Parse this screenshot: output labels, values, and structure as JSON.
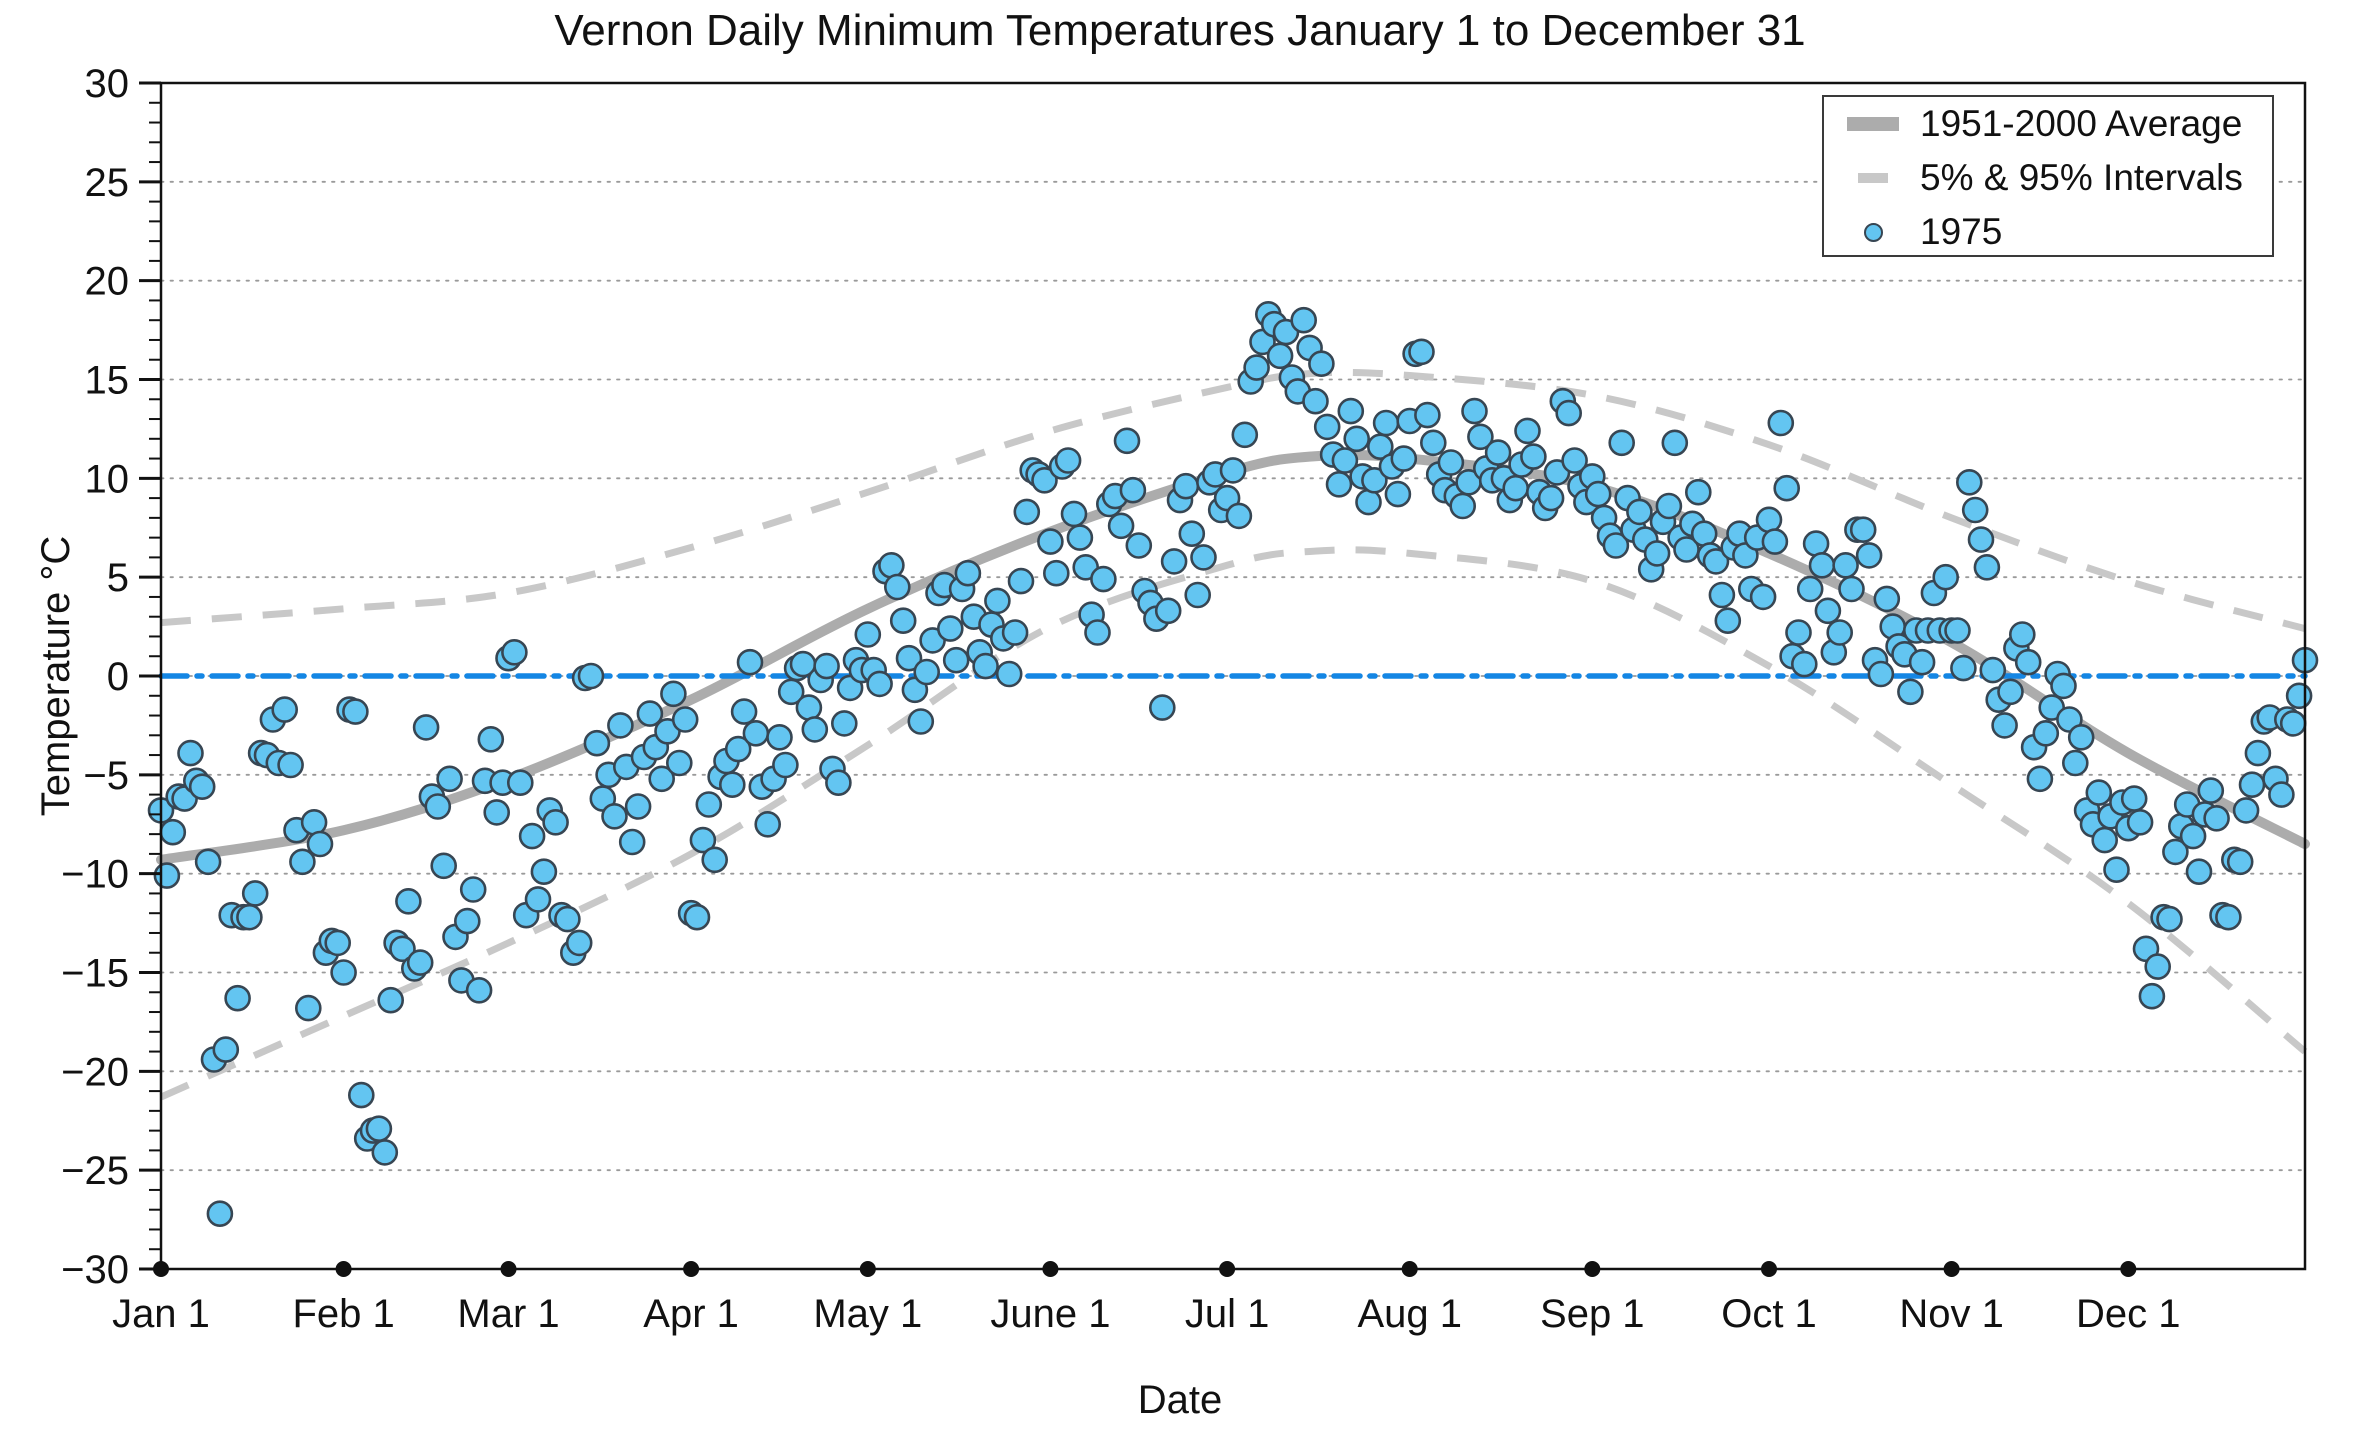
{
  "title": "Vernon Daily Minimum Temperatures January 1 to December 31",
  "x_axis": {
    "label": "Date"
  },
  "y_axis": {
    "label": "Temperature °C",
    "tick_step_major": 5,
    "tick_step_minor": 1
  },
  "legend": {
    "items": [
      {
        "label": "1951-2000 Average",
        "swatch": "thick-gray-line"
      },
      {
        "label": "5% & 95% Intervals",
        "swatch": "gray-dash"
      },
      {
        "label": "1975",
        "swatch": "blue-dot"
      }
    ]
  },
  "colors": {
    "scatter_fill": "#63C5F1",
    "scatter_edge": "#374653",
    "average_line": "#ACACAC",
    "interval_line": "#C8C8C8",
    "zero_line": "#1486E4",
    "grid": "#9a9a9a",
    "axis": "#111111"
  },
  "chart_data": {
    "type": "scatter",
    "title": "Vernon Daily Minimum Temperatures January 1 to December 31",
    "xlabel": "Date",
    "ylabel": "Temperature °C",
    "ylim": [
      -30,
      30
    ],
    "x_unit": "day_of_year",
    "x_range_days": [
      1,
      365
    ],
    "grid": "dotted horizontal every 5°C",
    "legend_position": "top-right",
    "month_labels": [
      "Jan 1",
      "Feb 1",
      "Mar 1",
      "Apr 1",
      "May 1",
      "June 1",
      "Jul 1",
      "Aug 1",
      "Sep 1",
      "Oct 1",
      "Nov 1",
      "Dec 1"
    ],
    "month_start_days": [
      1,
      32,
      60,
      91,
      121,
      152,
      182,
      213,
      244,
      274,
      305,
      335
    ],
    "y_major_ticks": [
      30,
      25,
      20,
      15,
      10,
      5,
      0,
      -5,
      -10,
      -15,
      -20,
      -25,
      -30
    ],
    "zero_reference_line": 0,
    "series": [
      {
        "name": "1951-2000 Average",
        "type": "line",
        "x": [
          1,
          32,
          60,
          91,
          121,
          152,
          182,
          196,
          213,
          244,
          274,
          305,
          335,
          365
        ],
        "y": [
          -9.3,
          -7.8,
          -5.2,
          -1.2,
          3.4,
          7.3,
          10.3,
          11.1,
          11.0,
          9.6,
          6.2,
          1.7,
          -3.9,
          -8.5
        ]
      },
      {
        "name": "5% Interval",
        "type": "dashed-line",
        "x": [
          1,
          32,
          60,
          91,
          121,
          152,
          182,
          196,
          213,
          244,
          274,
          305,
          335,
          365
        ],
        "y": [
          -21.3,
          -17.2,
          -13.5,
          -9.0,
          -3.5,
          2.5,
          5.6,
          6.3,
          6.2,
          4.8,
          0.5,
          -5.5,
          -11.5,
          -19.0
        ]
      },
      {
        "name": "95% Interval",
        "type": "dashed-line",
        "x": [
          1,
          32,
          60,
          91,
          121,
          152,
          182,
          196,
          213,
          244,
          274,
          305,
          335,
          365
        ],
        "y": [
          2.7,
          3.4,
          4.2,
          6.5,
          9.3,
          12.4,
          14.6,
          15.3,
          15.2,
          14.2,
          11.7,
          8.0,
          4.8,
          2.4
        ]
      },
      {
        "name": "1975",
        "type": "scatter",
        "x_is_day_of_year_1_to_365": true,
        "daily_temps": [
          -6.8,
          -10.1,
          -7.9,
          -6.1,
          -6.2,
          -3.9,
          -5.3,
          -5.6,
          -9.4,
          -19.4,
          -27.2,
          -18.9,
          -12.1,
          -16.3,
          -12.2,
          -12.2,
          -11.0,
          -3.9,
          -4.0,
          -2.2,
          -4.4,
          -1.7,
          -4.5,
          -7.8,
          -9.4,
          -16.8,
          -7.4,
          -8.5,
          -14.0,
          -13.4,
          -13.5,
          -15.0,
          -1.7,
          -1.8,
          -21.2,
          -23.4,
          -23.0,
          -22.9,
          -24.1,
          -16.4,
          -13.5,
          -13.8,
          -11.4,
          -14.8,
          -14.5,
          -2.6,
          -6.1,
          -6.6,
          -9.6,
          -5.2,
          -13.2,
          -15.4,
          -12.4,
          -10.8,
          -15.9,
          -5.3,
          -3.2,
          -6.9,
          -5.4,
          0.9,
          1.2,
          -5.4,
          -12.1,
          -8.1,
          -11.3,
          -9.9,
          -6.8,
          -7.4,
          -12.1,
          -12.3,
          -14.0,
          -13.5,
          -0.1,
          0.0,
          -3.4,
          -6.2,
          -5.0,
          -7.1,
          -2.5,
          -4.6,
          -8.4,
          -6.6,
          -4.1,
          -1.9,
          -3.6,
          -5.2,
          -2.8,
          -0.9,
          -4.4,
          -2.2,
          -12.0,
          -12.2,
          -8.3,
          -6.5,
          -9.3,
          -5.1,
          -4.3,
          -5.5,
          -3.7,
          -1.8,
          0.7,
          -2.9,
          -5.6,
          -7.5,
          -5.2,
          -3.1,
          -4.5,
          -0.8,
          0.4,
          0.6,
          -1.6,
          -2.7,
          -0.2,
          0.5,
          -4.7,
          -5.4,
          -2.4,
          -0.6,
          0.8,
          0.3,
          2.1,
          0.3,
          -0.4,
          5.3,
          5.6,
          4.5,
          2.8,
          0.9,
          -0.7,
          -2.3,
          0.2,
          1.8,
          4.2,
          4.6,
          2.4,
          0.8,
          4.4,
          5.2,
          3.0,
          1.2,
          0.5,
          2.6,
          3.8,
          1.9,
          0.1,
          2.2,
          4.8,
          8.3,
          10.4,
          10.2,
          9.9,
          6.8,
          5.2,
          10.6,
          10.9,
          8.2,
          7.0,
          5.5,
          3.1,
          2.2,
          4.9,
          8.7,
          9.1,
          7.6,
          11.9,
          9.4,
          6.6,
          4.3,
          3.7,
          2.9,
          -1.6,
          3.3,
          5.8,
          8.9,
          9.6,
          7.2,
          4.1,
          6.0,
          9.8,
          10.2,
          8.4,
          9.0,
          10.4,
          8.1,
          12.2,
          14.9,
          15.6,
          16.9,
          18.3,
          17.8,
          16.2,
          17.4,
          15.1,
          14.4,
          18.0,
          16.6,
          13.9,
          15.8,
          12.6,
          11.2,
          9.7,
          10.9,
          13.4,
          12.0,
          10.1,
          8.8,
          9.9,
          11.6,
          12.8,
          10.6,
          9.2,
          11.0,
          12.9,
          16.3,
          16.4,
          13.2,
          11.8,
          10.2,
          9.4,
          10.8,
          9.1,
          8.6,
          9.8,
          13.4,
          12.1,
          10.5,
          9.9,
          11.3,
          10.0,
          8.9,
          9.5,
          10.7,
          12.4,
          11.1,
          9.3,
          8.5,
          9.0,
          10.3,
          13.9,
          13.3,
          10.9,
          9.6,
          8.8,
          10.1,
          9.2,
          8.0,
          7.1,
          6.6,
          11.8,
          9.0,
          7.4,
          8.3,
          6.9,
          5.4,
          6.2,
          7.8,
          8.6,
          11.8,
          7.0,
          6.4,
          7.7,
          9.3,
          7.2,
          6.1,
          5.8,
          4.1,
          2.8,
          6.5,
          7.2,
          6.1,
          4.4,
          7.0,
          4.0,
          7.9,
          6.8,
          12.8,
          9.5,
          1.0,
          2.2,
          0.6,
          4.4,
          6.7,
          5.6,
          3.3,
          1.2,
          2.2,
          5.6,
          4.4,
          7.4,
          7.4,
          6.1,
          0.8,
          0.1,
          3.9,
          2.5,
          1.5,
          1.1,
          -0.8,
          2.3,
          0.7,
          2.3,
          4.2,
          2.3,
          5.0,
          2.3,
          2.3,
          0.4,
          9.8,
          8.4,
          6.9,
          5.5,
          0.3,
          -1.2,
          -2.5,
          -0.8,
          1.4,
          2.1,
          0.7,
          -3.6,
          -5.2,
          -2.9,
          -1.6,
          0.1,
          -0.5,
          -2.2,
          -4.4,
          -3.1,
          -6.8,
          -7.5,
          -5.9,
          -8.3,
          -7.1,
          -9.8,
          -6.4,
          -7.7,
          -6.2,
          -7.4,
          -13.8,
          -16.2,
          -14.7,
          -12.2,
          -12.3,
          -8.9,
          -7.6,
          -6.5,
          -8.1,
          -9.9,
          -7.0,
          -5.8,
          -7.2,
          -12.1,
          -12.2,
          -9.3,
          -9.4,
          -6.8,
          -5.5,
          -3.9,
          -2.3,
          -2.1,
          -5.2,
          -6.0,
          -2.2,
          -2.4,
          -1.0,
          0.8
        ]
      }
    ]
  }
}
